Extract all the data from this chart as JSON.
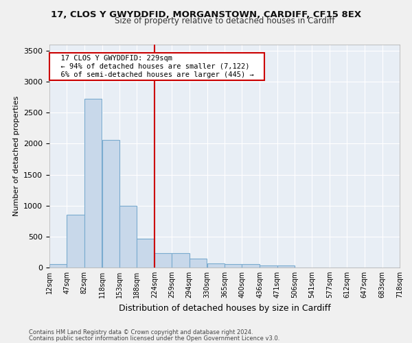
{
  "title": "17, CLOS Y GWYDDFID, MORGANSTOWN, CARDIFF, CF15 8EX",
  "subtitle": "Size of property relative to detached houses in Cardiff",
  "xlabel": "Distribution of detached houses by size in Cardiff",
  "ylabel": "Number of detached properties",
  "bar_color": "#c8d8ea",
  "bar_edge_color": "#7aabcf",
  "background_color": "#e8eef5",
  "grid_color": "#ffffff",
  "vline_x": 224,
  "vline_color": "#cc0000",
  "annotation_text": "  17 CLOS Y GWYDDFID: 229sqm  \n  ← 94% of detached houses are smaller (7,122)  \n  6% of semi-detached houses are larger (445) →  ",
  "annotation_box_color": "#cc0000",
  "footnote1": "Contains HM Land Registry data © Crown copyright and database right 2024.",
  "footnote2": "Contains public sector information licensed under the Open Government Licence v3.0.",
  "fig_facecolor": "#f0f0f0",
  "ylim": [
    0,
    3600
  ],
  "yticks": [
    0,
    500,
    1000,
    1500,
    2000,
    2500,
    3000,
    3500
  ],
  "bin_edges": [
    12,
    47,
    82,
    118,
    153,
    188,
    224,
    259,
    294,
    330,
    365,
    400,
    436,
    471,
    506,
    541,
    577,
    612,
    647,
    683,
    718
  ],
  "bin_labels": [
    "12sqm",
    "47sqm",
    "82sqm",
    "118sqm",
    "153sqm",
    "188sqm",
    "224sqm",
    "259sqm",
    "294sqm",
    "330sqm",
    "365sqm",
    "400sqm",
    "436sqm",
    "471sqm",
    "506sqm",
    "541sqm",
    "577sqm",
    "612sqm",
    "647sqm",
    "683sqm",
    "718sqm"
  ],
  "bar_heights": [
    60,
    850,
    2720,
    2060,
    1000,
    460,
    230,
    230,
    140,
    70,
    55,
    50,
    35,
    30,
    0,
    0,
    0,
    0,
    0,
    0
  ]
}
